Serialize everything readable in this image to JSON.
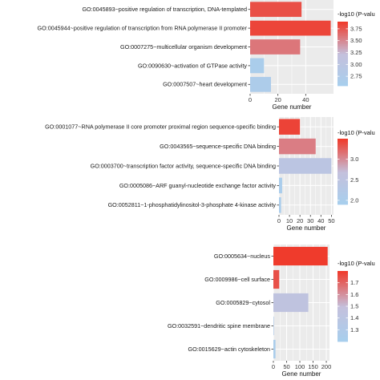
{
  "chart_data": [
    {
      "type": "bar",
      "orientation": "horizontal",
      "categories": [
        "GO:0045893~positive regulation of transcription, DNA-templated",
        "GO:0045944~positive regulation of transcription from RNA polymerase II promoter",
        "GO:0007275~multicellular organism development",
        "GO:0090630~activation of GTPase activity",
        "GO:0007507~heart development"
      ],
      "values": [
        37,
        58,
        36,
        10,
        15
      ],
      "color_values": [
        3.8,
        3.85,
        3.6,
        2.65,
        2.7
      ],
      "xlabel": "Gene number",
      "xticks": [
        0,
        20,
        40
      ],
      "xlim": [
        0,
        60
      ],
      "legend_title": "-log10 (P-valu",
      "legend_ticks": [
        3.75,
        3.5,
        3.25,
        3.0,
        2.75
      ],
      "legend_range": [
        2.55,
        3.9
      ],
      "legend_position": "right",
      "grid": true
    },
    {
      "type": "bar",
      "orientation": "horizontal",
      "categories": [
        "GO:0001077~RNA polymerase II core promoter proximal region sequence-specific binding",
        "GO:0043565~sequence-specific DNA binding",
        "GO:0003700~transcription factor activity, sequence-specific DNA binding",
        "GO:0005086~ARF guanyl-nucleotide exchange factor activity",
        "GO:0052811~1-phosphatidylinositol-3-phosphate 4-kinase activity"
      ],
      "values": [
        20,
        35,
        50,
        3,
        2
      ],
      "color_values": [
        3.45,
        3.1,
        2.45,
        2.0,
        2.0
      ],
      "xlabel": "Gene number",
      "xticks": [
        0,
        10,
        20,
        30,
        40,
        50
      ],
      "xlim": [
        0,
        52
      ],
      "legend_title": "-log10 (P-valu",
      "legend_ticks": [
        3.0,
        2.5,
        2.0
      ],
      "legend_range": [
        1.9,
        3.5
      ],
      "legend_position": "right",
      "grid": true
    },
    {
      "type": "bar",
      "orientation": "horizontal",
      "categories": [
        "GO:0005634~nucleus",
        "GO:0009986~cell surface",
        "GO:0005829~cytosol",
        "GO:0032591~dendritic spine membrane",
        "GO:0015629~actin cytoskeleton"
      ],
      "values": [
        205,
        22,
        132,
        2,
        8
      ],
      "color_values": [
        1.8,
        1.75,
        1.45,
        1.3,
        1.25
      ],
      "xlabel": "Gene number",
      "xticks": [
        0,
        50,
        100,
        150,
        200
      ],
      "xlim": [
        0,
        212
      ],
      "legend_title": "-log10 (P-valu",
      "legend_ticks": [
        1.7,
        1.6,
        1.5,
        1.4,
        1.3
      ],
      "legend_range": [
        1.2,
        1.8
      ],
      "legend_position": "right",
      "grid": true
    }
  ],
  "colors": {
    "low": "#a6cfee",
    "mid": "#c4c0dc",
    "high": "#ef3b2c",
    "panel_bg": "#ebebeb",
    "grid": "#ffffff"
  }
}
